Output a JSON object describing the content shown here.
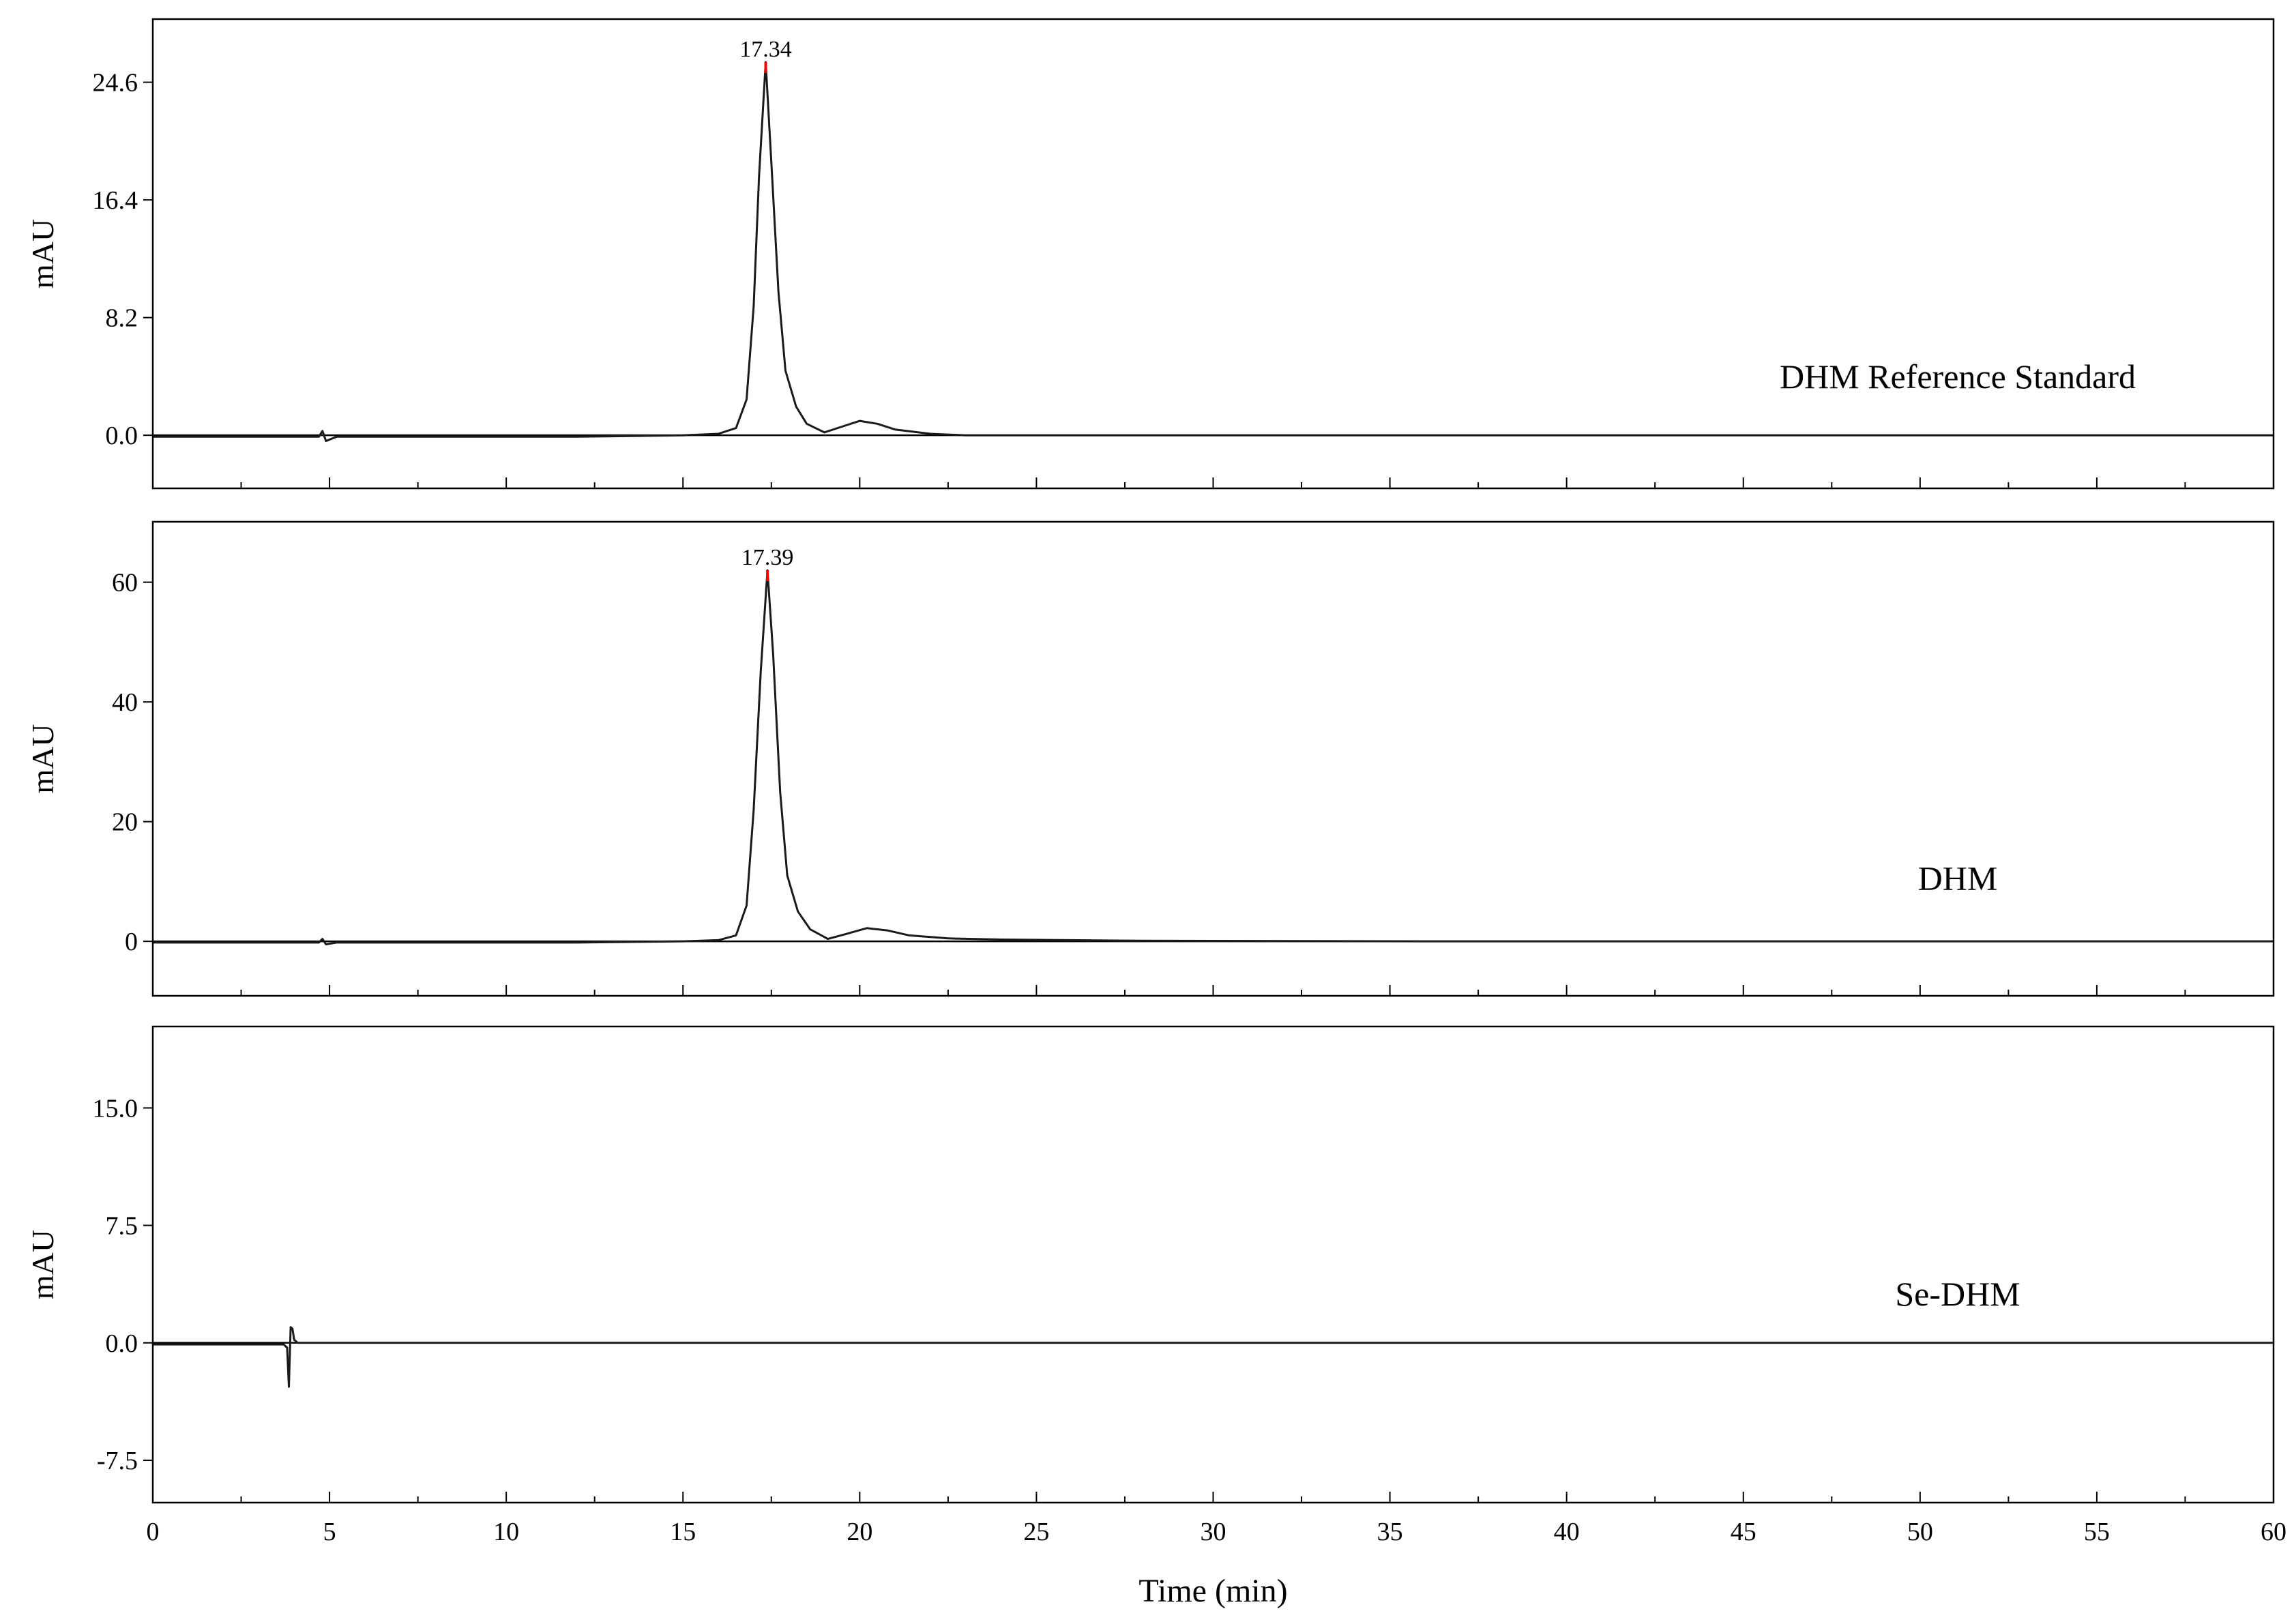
{
  "chart_data": [
    {
      "type": "line",
      "label": "DHM Reference Standard",
      "ylabel": "mAU",
      "color": "#1a1a1a",
      "peak_color": "#ff0000",
      "x": [
        0,
        2,
        4,
        4.7,
        4.8,
        4.9,
        5.2,
        8,
        12,
        15,
        16,
        16.5,
        16.8,
        17,
        17.15,
        17.34,
        17.5,
        17.7,
        17.9,
        18.2,
        18.5,
        19,
        19.5,
        20,
        20.5,
        21,
        22,
        23,
        25,
        30,
        40,
        50,
        60
      ],
      "values": [
        -0.1,
        -0.1,
        -0.1,
        -0.1,
        0.3,
        -0.4,
        -0.1,
        -0.1,
        -0.1,
        0,
        0.1,
        0.5,
        2.5,
        9,
        18,
        26,
        19,
        10,
        4.5,
        2,
        0.8,
        0.2,
        0.6,
        1,
        0.8,
        0.4,
        0.1,
        0,
        0,
        0,
        0,
        0,
        0
      ],
      "annotations": [
        {
          "text": "17.34",
          "x": 17.34,
          "y": 26
        }
      ],
      "xlim": [
        0,
        60
      ],
      "xticks": [
        0,
        5,
        10,
        15,
        20,
        25,
        30,
        35,
        40,
        45,
        50,
        55,
        60
      ],
      "xminorticks": [
        2.5,
        7.5,
        12.5,
        17.5,
        22.5,
        27.5,
        32.5,
        37.5,
        42.5,
        47.5,
        52.5,
        57.5
      ],
      "xtick_labels": false,
      "ylim": [
        -3.7,
        29.0
      ],
      "yticks": [
        {
          "value": 0,
          "label": "0.0"
        },
        8.2,
        16.4,
        24.6
      ]
    },
    {
      "type": "line",
      "label": "DHM",
      "ylabel": "mAU",
      "color": "#1a1a1a",
      "peak_color": "#ff0000",
      "x": [
        0,
        2,
        4,
        4.7,
        4.8,
        4.9,
        5.2,
        8,
        12,
        15,
        16,
        16.5,
        16.8,
        17,
        17.2,
        17.39,
        17.55,
        17.75,
        17.95,
        18.25,
        18.6,
        19.1,
        19.6,
        20.2,
        20.8,
        21.4,
        22.5,
        24,
        28,
        36,
        40,
        50,
        60
      ],
      "values": [
        -0.2,
        -0.2,
        -0.2,
        -0.2,
        0.4,
        -0.5,
        -0.2,
        -0.2,
        -0.2,
        0,
        0.2,
        1,
        6,
        22,
        45,
        62,
        48,
        25,
        11,
        5,
        2,
        0.4,
        1.2,
        2.2,
        1.8,
        1,
        0.5,
        0.3,
        0.1,
        0,
        0,
        0,
        0
      ],
      "annotations": [
        {
          "text": "17.39",
          "x": 17.39,
          "y": 62
        }
      ],
      "xlim": [
        0,
        60
      ],
      "xticks": [
        0,
        5,
        10,
        15,
        20,
        25,
        30,
        35,
        40,
        45,
        50,
        55,
        60
      ],
      "xminorticks": [
        2.5,
        7.5,
        12.5,
        17.5,
        22.5,
        27.5,
        32.5,
        37.5,
        42.5,
        47.5,
        52.5,
        57.5
      ],
      "xtick_labels": false,
      "ylim": [
        -9.1,
        70.1
      ],
      "yticks": [
        0,
        20,
        40,
        60
      ]
    },
    {
      "type": "line",
      "label": "Se-DHM",
      "ylabel": "mAU",
      "xlabel": "Time (min)",
      "color": "#1a1a1a",
      "x": [
        0,
        2,
        3.7,
        3.8,
        3.85,
        3.9,
        3.95,
        4.0,
        4.1,
        5,
        10,
        20,
        30,
        40,
        50,
        60
      ],
      "values": [
        -0.1,
        -0.1,
        -0.1,
        -0.3,
        -2.8,
        1.0,
        0.9,
        0.2,
        0,
        0,
        0,
        0,
        0,
        0,
        0,
        0
      ],
      "annotations": [],
      "xlim": [
        0,
        60
      ],
      "xticks": [
        0,
        5,
        10,
        15,
        20,
        25,
        30,
        35,
        40,
        45,
        50,
        55,
        60
      ],
      "xminorticks": [
        2.5,
        7.5,
        12.5,
        17.5,
        22.5,
        27.5,
        32.5,
        37.5,
        42.5,
        47.5,
        52.5,
        57.5
      ],
      "xtick_labels": true,
      "ylim": [
        -10.2,
        20.2
      ],
      "yticks": [
        -7.5,
        {
          "value": 0,
          "label": "0.0"
        },
        7.5,
        {
          "value": 15,
          "label": "15.0"
        }
      ]
    }
  ]
}
